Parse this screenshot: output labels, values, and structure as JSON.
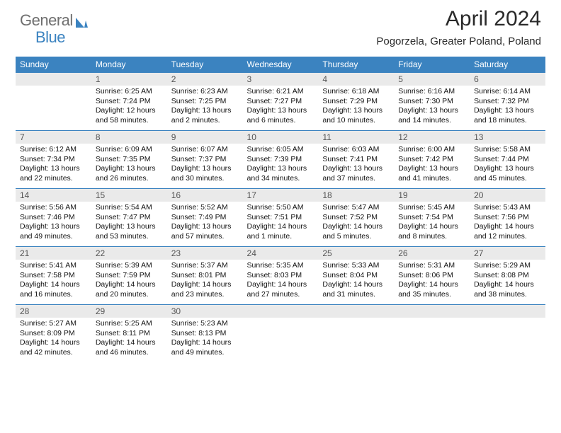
{
  "logo": {
    "text_general": "General",
    "text_blue": "Blue",
    "icon_color": "#3b83c0",
    "gray_color": "#6f6f6f"
  },
  "title": "April 2024",
  "subtitle": "Pogorzela, Greater Poland, Poland",
  "colors": {
    "header_bg": "#3b83c0",
    "header_fg": "#ffffff",
    "daynum_bg": "#eaeaea",
    "daynum_fg": "#555555",
    "border": "#3b83c0"
  },
  "weekdays": [
    "Sunday",
    "Monday",
    "Tuesday",
    "Wednesday",
    "Thursday",
    "Friday",
    "Saturday"
  ],
  "weeks": [
    [
      {
        "n": "",
        "sr": "",
        "ss": "",
        "dl": ""
      },
      {
        "n": "1",
        "sr": "Sunrise: 6:25 AM",
        "ss": "Sunset: 7:24 PM",
        "dl": "Daylight: 12 hours and 58 minutes."
      },
      {
        "n": "2",
        "sr": "Sunrise: 6:23 AM",
        "ss": "Sunset: 7:25 PM",
        "dl": "Daylight: 13 hours and 2 minutes."
      },
      {
        "n": "3",
        "sr": "Sunrise: 6:21 AM",
        "ss": "Sunset: 7:27 PM",
        "dl": "Daylight: 13 hours and 6 minutes."
      },
      {
        "n": "4",
        "sr": "Sunrise: 6:18 AM",
        "ss": "Sunset: 7:29 PM",
        "dl": "Daylight: 13 hours and 10 minutes."
      },
      {
        "n": "5",
        "sr": "Sunrise: 6:16 AM",
        "ss": "Sunset: 7:30 PM",
        "dl": "Daylight: 13 hours and 14 minutes."
      },
      {
        "n": "6",
        "sr": "Sunrise: 6:14 AM",
        "ss": "Sunset: 7:32 PM",
        "dl": "Daylight: 13 hours and 18 minutes."
      }
    ],
    [
      {
        "n": "7",
        "sr": "Sunrise: 6:12 AM",
        "ss": "Sunset: 7:34 PM",
        "dl": "Daylight: 13 hours and 22 minutes."
      },
      {
        "n": "8",
        "sr": "Sunrise: 6:09 AM",
        "ss": "Sunset: 7:35 PM",
        "dl": "Daylight: 13 hours and 26 minutes."
      },
      {
        "n": "9",
        "sr": "Sunrise: 6:07 AM",
        "ss": "Sunset: 7:37 PM",
        "dl": "Daylight: 13 hours and 30 minutes."
      },
      {
        "n": "10",
        "sr": "Sunrise: 6:05 AM",
        "ss": "Sunset: 7:39 PM",
        "dl": "Daylight: 13 hours and 34 minutes."
      },
      {
        "n": "11",
        "sr": "Sunrise: 6:03 AM",
        "ss": "Sunset: 7:41 PM",
        "dl": "Daylight: 13 hours and 37 minutes."
      },
      {
        "n": "12",
        "sr": "Sunrise: 6:00 AM",
        "ss": "Sunset: 7:42 PM",
        "dl": "Daylight: 13 hours and 41 minutes."
      },
      {
        "n": "13",
        "sr": "Sunrise: 5:58 AM",
        "ss": "Sunset: 7:44 PM",
        "dl": "Daylight: 13 hours and 45 minutes."
      }
    ],
    [
      {
        "n": "14",
        "sr": "Sunrise: 5:56 AM",
        "ss": "Sunset: 7:46 PM",
        "dl": "Daylight: 13 hours and 49 minutes."
      },
      {
        "n": "15",
        "sr": "Sunrise: 5:54 AM",
        "ss": "Sunset: 7:47 PM",
        "dl": "Daylight: 13 hours and 53 minutes."
      },
      {
        "n": "16",
        "sr": "Sunrise: 5:52 AM",
        "ss": "Sunset: 7:49 PM",
        "dl": "Daylight: 13 hours and 57 minutes."
      },
      {
        "n": "17",
        "sr": "Sunrise: 5:50 AM",
        "ss": "Sunset: 7:51 PM",
        "dl": "Daylight: 14 hours and 1 minute."
      },
      {
        "n": "18",
        "sr": "Sunrise: 5:47 AM",
        "ss": "Sunset: 7:52 PM",
        "dl": "Daylight: 14 hours and 5 minutes."
      },
      {
        "n": "19",
        "sr": "Sunrise: 5:45 AM",
        "ss": "Sunset: 7:54 PM",
        "dl": "Daylight: 14 hours and 8 minutes."
      },
      {
        "n": "20",
        "sr": "Sunrise: 5:43 AM",
        "ss": "Sunset: 7:56 PM",
        "dl": "Daylight: 14 hours and 12 minutes."
      }
    ],
    [
      {
        "n": "21",
        "sr": "Sunrise: 5:41 AM",
        "ss": "Sunset: 7:58 PM",
        "dl": "Daylight: 14 hours and 16 minutes."
      },
      {
        "n": "22",
        "sr": "Sunrise: 5:39 AM",
        "ss": "Sunset: 7:59 PM",
        "dl": "Daylight: 14 hours and 20 minutes."
      },
      {
        "n": "23",
        "sr": "Sunrise: 5:37 AM",
        "ss": "Sunset: 8:01 PM",
        "dl": "Daylight: 14 hours and 23 minutes."
      },
      {
        "n": "24",
        "sr": "Sunrise: 5:35 AM",
        "ss": "Sunset: 8:03 PM",
        "dl": "Daylight: 14 hours and 27 minutes."
      },
      {
        "n": "25",
        "sr": "Sunrise: 5:33 AM",
        "ss": "Sunset: 8:04 PM",
        "dl": "Daylight: 14 hours and 31 minutes."
      },
      {
        "n": "26",
        "sr": "Sunrise: 5:31 AM",
        "ss": "Sunset: 8:06 PM",
        "dl": "Daylight: 14 hours and 35 minutes."
      },
      {
        "n": "27",
        "sr": "Sunrise: 5:29 AM",
        "ss": "Sunset: 8:08 PM",
        "dl": "Daylight: 14 hours and 38 minutes."
      }
    ],
    [
      {
        "n": "28",
        "sr": "Sunrise: 5:27 AM",
        "ss": "Sunset: 8:09 PM",
        "dl": "Daylight: 14 hours and 42 minutes."
      },
      {
        "n": "29",
        "sr": "Sunrise: 5:25 AM",
        "ss": "Sunset: 8:11 PM",
        "dl": "Daylight: 14 hours and 46 minutes."
      },
      {
        "n": "30",
        "sr": "Sunrise: 5:23 AM",
        "ss": "Sunset: 8:13 PM",
        "dl": "Daylight: 14 hours and 49 minutes."
      },
      {
        "n": "",
        "sr": "",
        "ss": "",
        "dl": ""
      },
      {
        "n": "",
        "sr": "",
        "ss": "",
        "dl": ""
      },
      {
        "n": "",
        "sr": "",
        "ss": "",
        "dl": ""
      },
      {
        "n": "",
        "sr": "",
        "ss": "",
        "dl": ""
      }
    ]
  ]
}
